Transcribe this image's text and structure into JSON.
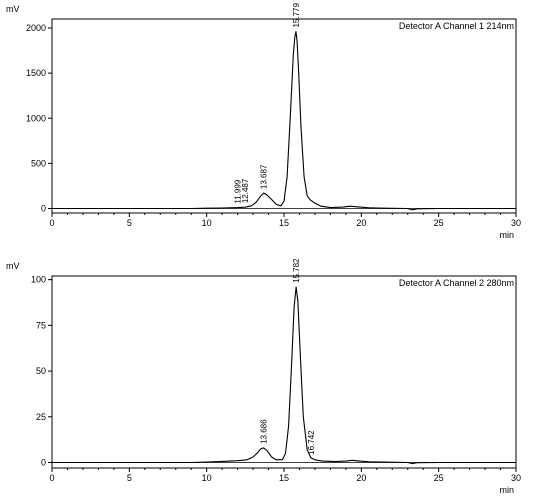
{
  "chart_data": [
    {
      "type": "line",
      "legend": "Detector A Channel 1 214nm",
      "ylabel": "mV",
      "xlabel": "min",
      "xlim": [
        0,
        30
      ],
      "ylim": [
        -50,
        2100
      ],
      "x_ticks": [
        0,
        5,
        10,
        15,
        20,
        25,
        30
      ],
      "y_ticks": [
        0,
        500,
        1000,
        1500,
        2000
      ],
      "baseline": 0,
      "peak_labels": [
        {
          "label": "11.999",
          "x": 11.999,
          "y": 10
        },
        {
          "label": "12.487",
          "x": 12.487,
          "y": 14
        },
        {
          "label": "13.687",
          "x": 13.687,
          "y": 170
        },
        {
          "label": "15.779",
          "x": 15.779,
          "y": 1960
        }
      ],
      "series": [
        {
          "x": [
            0,
            9.0,
            10.0,
            11.0,
            11.999,
            12.487,
            12.9,
            13.2,
            13.5,
            13.687,
            13.9,
            14.2,
            14.5,
            14.8,
            15.0,
            15.2,
            15.4,
            15.6,
            15.7,
            15.779,
            15.85,
            15.95,
            16.1,
            16.3,
            16.5,
            16.7,
            17.0,
            17.4,
            18.0,
            18.8,
            19.3,
            19.8,
            20.5,
            21.5,
            23.0,
            23.3,
            23.6,
            25.0,
            30.0
          ],
          "y": [
            0,
            0,
            3,
            5,
            10,
            14,
            30,
            70,
            140,
            170,
            150,
            100,
            45,
            30,
            80,
            350,
            1000,
            1700,
            1900,
            1960,
            1850,
            1500,
            900,
            350,
            140,
            95,
            60,
            25,
            10,
            15,
            25,
            18,
            8,
            3,
            0,
            -15,
            -3,
            0,
            0
          ]
        }
      ]
    },
    {
      "type": "line",
      "legend": "Detector A Channel 2 280nm",
      "ylabel": "mV",
      "xlabel": "min",
      "xlim": [
        0,
        30
      ],
      "ylim": [
        -3,
        102
      ],
      "x_ticks": [
        0,
        5,
        10,
        15,
        20,
        25,
        30
      ],
      "y_ticks": [
        0,
        25,
        50,
        75,
        100
      ],
      "y_tick_labels": [
        "0",
        "25",
        "50",
        "75",
        "100"
      ],
      "baseline": 0,
      "peak_labels": [
        {
          "label": "13.686",
          "x": 13.686,
          "y": 8
        },
        {
          "label": "15.782",
          "x": 15.782,
          "y": 96
        },
        {
          "label": "16.742",
          "x": 16.742,
          "y": 2
        }
      ],
      "series": [
        {
          "x": [
            0,
            9.0,
            10.0,
            11.0,
            12.0,
            12.6,
            13.0,
            13.3,
            13.5,
            13.686,
            13.9,
            14.2,
            14.5,
            14.9,
            15.1,
            15.3,
            15.5,
            15.65,
            15.782,
            15.9,
            16.05,
            16.25,
            16.5,
            16.742,
            17.0,
            17.5,
            18.3,
            19.0,
            19.4,
            19.9,
            20.5,
            21.5,
            23.0,
            23.3,
            23.6,
            25.0,
            30.0
          ],
          "y": [
            0,
            0,
            0.3,
            0.6,
            1.0,
            1.5,
            3,
            5.5,
            7.5,
            8,
            6.5,
            3,
            1.5,
            1.6,
            5,
            20,
            55,
            85,
            96,
            88,
            60,
            25,
            7,
            2.5,
            1.5,
            0.8,
            0.5,
            0.8,
            1.2,
            0.8,
            0.4,
            0.2,
            0,
            -0.6,
            -0.1,
            0,
            0
          ]
        }
      ]
    }
  ]
}
